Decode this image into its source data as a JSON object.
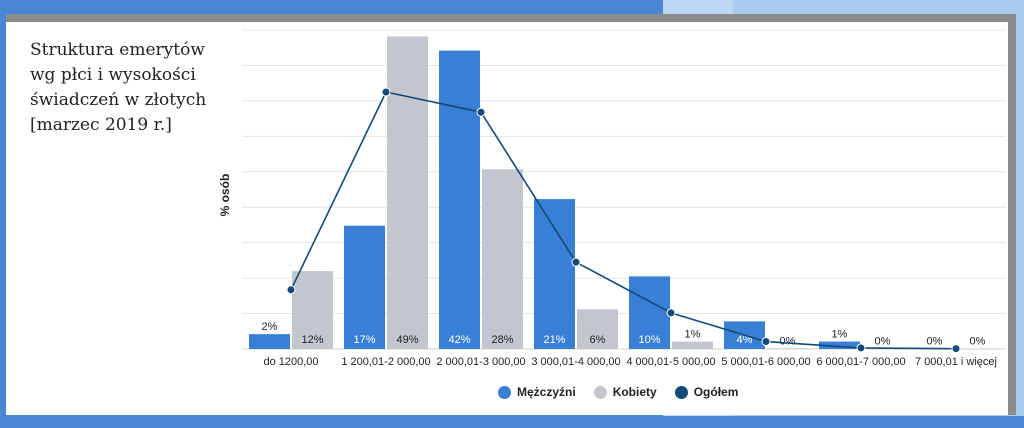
{
  "title": "Struktura emerytów\nwg płci i wysokości\nświadczeń w złotych\n[marzec 2019 r.]",
  "colors": {
    "men": "#3a7fd6",
    "women": "#c3c6cf",
    "total": "#124a7a"
  },
  "chart_data": {
    "type": "bar",
    "ylabel": "% osób",
    "ylim": [
      0,
      90
    ],
    "grid": true,
    "categories": [
      "do  1200,00",
      "1 200,01-2 000,00",
      "2 000,01-3 000,00",
      "3 000,01-4 000,00",
      "4 000,01-5 000,00",
      "5 000,01-6 000,00",
      "6 000,01-7 000,00",
      "7 000,01 i więcej"
    ],
    "series": [
      {
        "name": "Mężczyźni",
        "type": "bar",
        "values": [
          4.2,
          34.8,
          84.2,
          42.3,
          20.5,
          7.8,
          2.1,
          0.2
        ],
        "labels": [
          "2%",
          "17%",
          "42%",
          "21%",
          "10%",
          "4%",
          "1%",
          "0%"
        ]
      },
      {
        "name": "Kobiety",
        "type": "bar",
        "values": [
          22,
          88.2,
          50.7,
          11.2,
          2.1,
          0.2,
          0.1,
          0.1
        ],
        "labels": [
          "12%",
          "49%",
          "28%",
          "6%",
          "1%",
          "0%",
          "0%",
          "0%"
        ]
      },
      {
        "name": "Ogółem",
        "type": "line",
        "values": [
          16.7,
          72.5,
          66.8,
          24.5,
          10.2,
          2.1,
          0.3,
          0.1
        ]
      }
    ],
    "legend_position": "bottom"
  }
}
